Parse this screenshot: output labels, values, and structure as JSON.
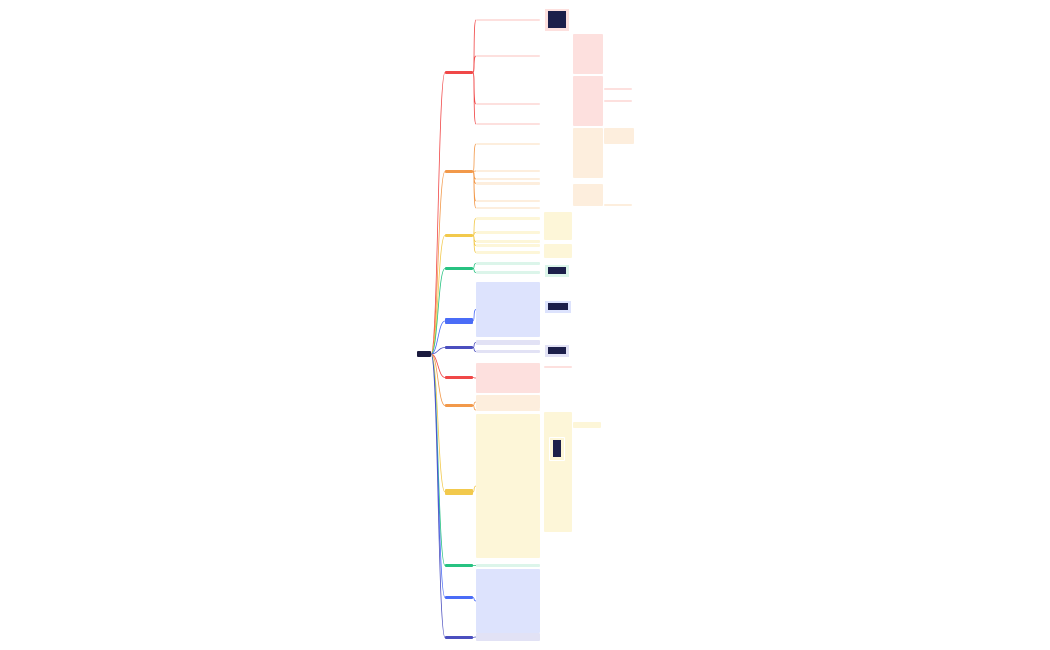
{
  "mindmap": {
    "root": {
      "label": ""
    },
    "branches": [
      {
        "color": "#f04848",
        "fill": "#fde0de"
      },
      {
        "color": "#f2994a",
        "fill": "#fdeedd"
      },
      {
        "color": "#f2c94c",
        "fill": "#fdf6d8"
      },
      {
        "color": "#27c281",
        "fill": "#dcf5ea"
      },
      {
        "color": "#4a6cf7",
        "fill": "#dde3fd"
      },
      {
        "color": "#4b4fbf",
        "fill": "#e2e2f5"
      },
      {
        "color": "#f04848",
        "fill": "#fde0de"
      },
      {
        "color": "#f2994a",
        "fill": "#fdeedd"
      },
      {
        "color": "#f2c94c",
        "fill": "#fdf6d8"
      },
      {
        "color": "#27c281",
        "fill": "#dcf5ea"
      },
      {
        "color": "#4a6cf7",
        "fill": "#dde3fd"
      },
      {
        "color": "#4b4fbf",
        "fill": "#e2e2f5"
      }
    ]
  }
}
